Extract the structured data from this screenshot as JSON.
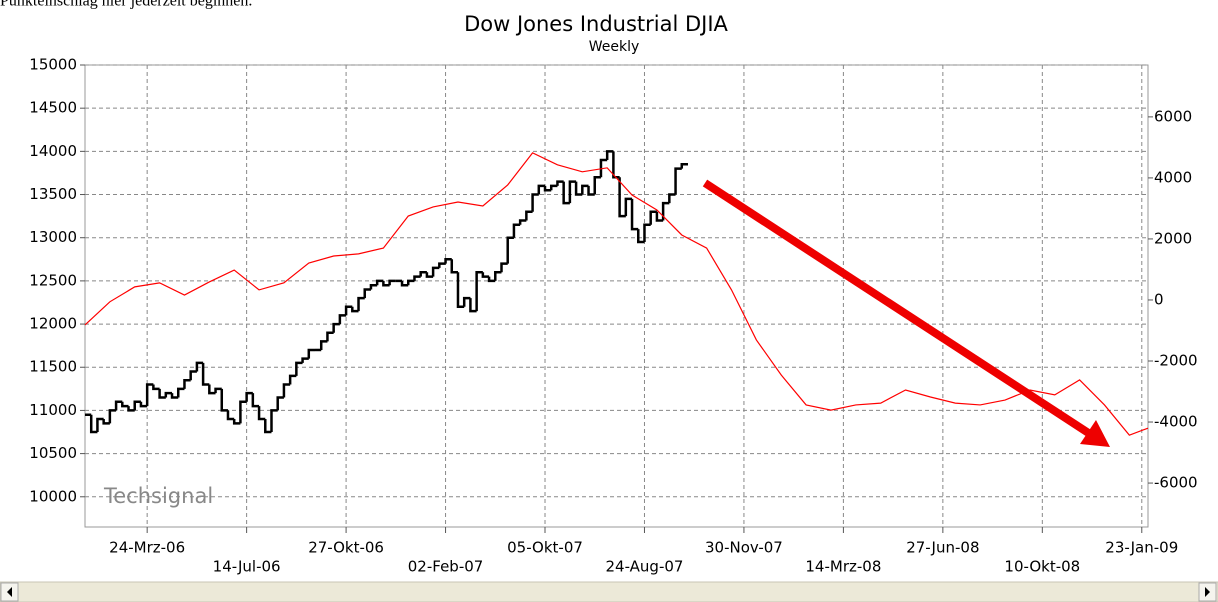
{
  "header_text": "Punkteinschlag hier jederzeit beginnen.",
  "chart_data": {
    "type": "line",
    "title": "Dow Jones Industrial DJIA",
    "subtitle": "Weekly",
    "watermark": "Techsignal",
    "xlim": [
      0,
      171
    ],
    "xticks": [
      {
        "value": 10,
        "label": "24-Mrz-06"
      },
      {
        "value": 26,
        "label": "14-Jul-06"
      },
      {
        "value": 42,
        "label": "27-Okt-06"
      },
      {
        "value": 58,
        "label": "02-Feb-07"
      },
      {
        "value": 74,
        "label": "05-Okt-07"
      },
      {
        "value": 90,
        "label": "24-Aug-07"
      },
      {
        "value": 106,
        "label": "30-Nov-07"
      },
      {
        "value": 122,
        "label": "14-Mrz-08"
      },
      {
        "value": 138,
        "label": "27-Jun-08"
      },
      {
        "value": 154,
        "label": "10-Okt-08"
      },
      {
        "value": 170,
        "label": "23-Jan-09"
      }
    ],
    "ylim": [
      9650,
      15000
    ],
    "yticks": [
      10000,
      10500,
      11000,
      11500,
      12000,
      12500,
      13000,
      13500,
      14000,
      14500,
      15000
    ],
    "y2lim": [
      -7440,
      7700
    ],
    "y2ticks": [
      -6000,
      -4000,
      -2000,
      0,
      2000,
      4000,
      6000
    ],
    "grid": true,
    "series": [
      {
        "color": "#000000",
        "x": [
          0,
          1,
          2,
          3,
          4,
          5,
          6,
          7,
          8,
          9,
          10,
          11,
          12,
          13,
          14,
          15,
          16,
          17,
          18,
          19,
          20,
          21,
          22,
          23,
          24,
          25,
          26,
          27,
          28,
          29,
          30,
          31,
          32,
          33,
          34,
          35,
          36,
          37,
          38,
          39,
          40,
          41,
          42,
          43,
          44,
          45,
          46,
          47,
          48,
          49,
          50,
          51,
          52,
          53,
          54,
          55,
          56,
          57,
          58,
          59,
          60,
          61,
          62,
          63,
          64,
          65,
          66,
          67,
          68,
          69,
          70,
          71,
          72,
          73,
          74,
          75,
          76,
          77,
          78,
          79,
          80,
          81,
          82,
          83,
          84,
          85,
          86,
          87,
          88,
          89,
          90,
          91,
          92,
          93,
          94,
          95,
          96
        ],
        "values": [
          10950,
          10750,
          10900,
          10850,
          11000,
          11100,
          11050,
          11000,
          11100,
          11050,
          11300,
          11250,
          11150,
          11200,
          11150,
          11250,
          11350,
          11450,
          11550,
          11300,
          11200,
          11250,
          11000,
          10900,
          10850,
          11100,
          11200,
          11050,
          10900,
          10750,
          11000,
          11150,
          11300,
          11400,
          11550,
          11600,
          11700,
          11700,
          11800,
          11900,
          12000,
          12100,
          12200,
          12150,
          12300,
          12400,
          12450,
          12500,
          12450,
          12500,
          12500,
          12450,
          12500,
          12550,
          12600,
          12550,
          12650,
          12700,
          12750,
          12600,
          12200,
          12300,
          12150,
          12600,
          12550,
          12500,
          12600,
          12700,
          13000,
          13150,
          13200,
          13300,
          13500,
          13600,
          13550,
          13600,
          13650,
          13400,
          13650,
          13500,
          13600,
          13500,
          13700,
          13900,
          14000,
          13700,
          13250,
          13450,
          13100,
          12950,
          13150,
          13300,
          13200,
          13400,
          13500,
          13800,
          13850
        ]
      },
      {
        "color": "#ff0000",
        "axis": "y2",
        "x": [
          0,
          4,
          8,
          12,
          16,
          20,
          24,
          28,
          32,
          36,
          40,
          44,
          48,
          52,
          56,
          60,
          64,
          68,
          72,
          76,
          80,
          84,
          88,
          92,
          96,
          100,
          104,
          108,
          112,
          116,
          120,
          124,
          128,
          132,
          136,
          140,
          144,
          148,
          152,
          156,
          160,
          164,
          168,
          171
        ],
        "values": [
          -820,
          -60,
          430,
          560,
          160,
          590,
          980,
          330,
          560,
          1210,
          1440,
          1510,
          1700,
          2750,
          3050,
          3210,
          3080,
          3770,
          4820,
          4430,
          4200,
          4330,
          3440,
          2950,
          2130,
          1700,
          330,
          -1310,
          -2460,
          -3440,
          -3610,
          -3440,
          -3380,
          -2950,
          -3180,
          -3380,
          -3440,
          -3280,
          -2950,
          -3110,
          -2620,
          -3440,
          -4430,
          -4200
        ]
      }
    ]
  }
}
